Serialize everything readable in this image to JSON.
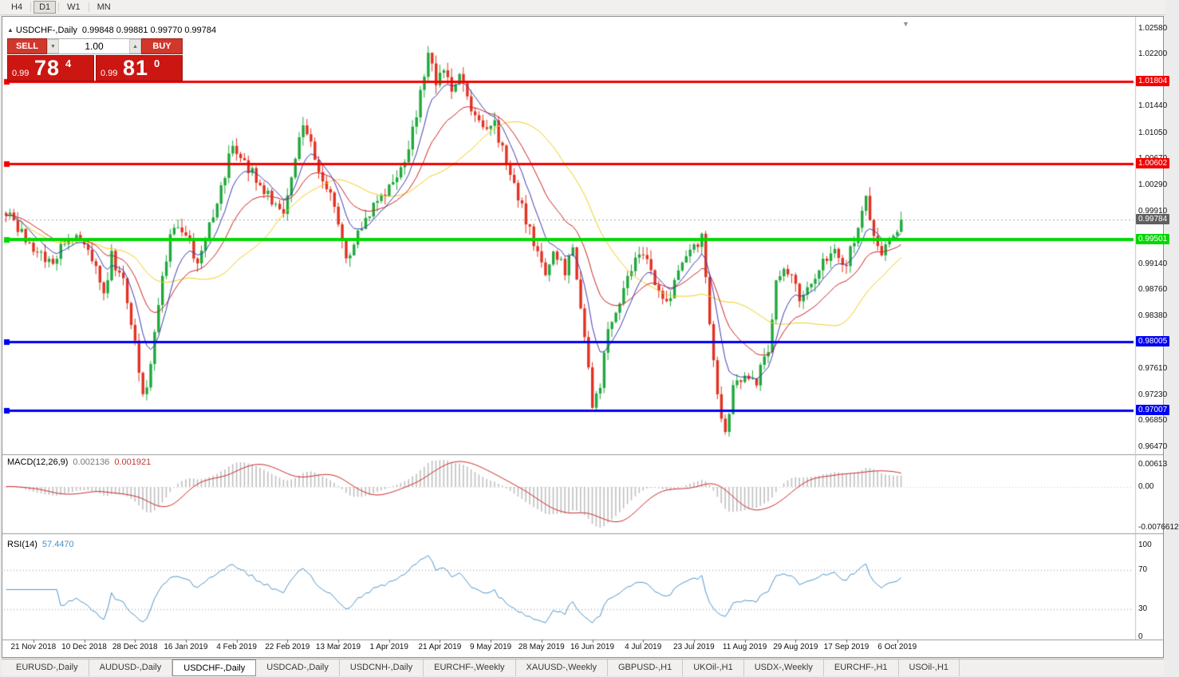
{
  "toolbar": {
    "timeframes": [
      {
        "label": "H4"
      },
      {
        "label": "D1"
      },
      {
        "label": "W1"
      },
      {
        "label": "MN"
      }
    ],
    "active_timeframe": "D1"
  },
  "icons": {
    "title_arrow": "▲",
    "shift_marker": "▼",
    "spinner_down": "▼",
    "spinner_up": "▲"
  },
  "chart_header": {
    "symbol": "USDCHF-,Daily",
    "ohlc_text": "0.99848 0.99881 0.99770 0.99784",
    "open": "0.99848",
    "high": "0.99881",
    "low": "0.99770",
    "close": "0.99784"
  },
  "trade_panel": {
    "sell_label": "SELL",
    "buy_label": "BUY",
    "volume": "1.00",
    "sell_price_prefix": "0.99",
    "sell_price_big": "78",
    "sell_price_sup": "4",
    "buy_price_prefix": "0.99",
    "buy_price_big": "81",
    "buy_price_sup": "0"
  },
  "indicators": {
    "macd": {
      "name": "MACD(12,26,9)",
      "main_value": "0.002136",
      "signal_value": "0.001921",
      "axis_top": "0.00613",
      "axis_zero": "0.00",
      "axis_bottom": "-0.0076612"
    },
    "rsi": {
      "name": "RSI(14)",
      "value": "57.4470",
      "axis_labels": [
        100,
        70,
        30,
        0
      ],
      "levels": [
        70,
        30
      ]
    }
  },
  "tabs": [
    {
      "label": "EURUSD-,Daily",
      "active": false
    },
    {
      "label": "AUDUSD-,Daily",
      "active": false
    },
    {
      "label": "USDCHF-,Daily",
      "active": true
    },
    {
      "label": "USDCAD-,Daily",
      "active": false
    },
    {
      "label": "USDCNH-,Daily",
      "active": false
    },
    {
      "label": "EURCHF-,Weekly",
      "active": false
    },
    {
      "label": "XAUUSD-,Weekly",
      "active": false
    },
    {
      "label": "GBPUSD-,H1",
      "active": false
    },
    {
      "label": "UKOil-,H1",
      "active": false
    },
    {
      "label": "USDX-,Weekly",
      "active": false
    },
    {
      "label": "EURCHF-,H1",
      "active": false
    },
    {
      "label": "USOil-,H1",
      "active": false
    }
  ],
  "chart_data": {
    "type": "candlestick",
    "symbol": "USDCHF-",
    "timeframe": "Daily",
    "title": "USDCHF-,Daily",
    "price_axis": {
      "min": 0.9641,
      "max": 1.0268,
      "labels": [
        "1.02580",
        "1.02200",
        "1.01440",
        "1.01050",
        "1.00670",
        "1.00290",
        "0.99910",
        "0.99140",
        "0.98760",
        "0.98380",
        "0.97610",
        "0.97230",
        "0.96850",
        "0.96470"
      ]
    },
    "hlines": [
      {
        "value": 1.01804,
        "label": "1.01804",
        "color": "#f40000",
        "width": 3
      },
      {
        "value": 1.00602,
        "label": "1.00602",
        "color": "#f40000",
        "width": 3
      },
      {
        "value": 0.99501,
        "label": "0.99501",
        "color": "#00d800",
        "width": 4
      },
      {
        "value": 0.98005,
        "label": "0.98005",
        "color": "#0000f0",
        "width": 3
      },
      {
        "value": 0.97007,
        "label": "0.97007",
        "color": "#0000f0",
        "width": 3
      }
    ],
    "current_price": {
      "value": 0.99784,
      "label": "0.99784",
      "badge_color": "#5f5f5f"
    },
    "num_candles": 230,
    "waypoints": [
      [
        0,
        0.9988
      ],
      [
        4,
        0.9962
      ],
      [
        8,
        0.9932
      ],
      [
        12,
        0.9912
      ],
      [
        15,
        0.9946
      ],
      [
        18,
        0.9958
      ],
      [
        21,
        0.994
      ],
      [
        25,
        0.987
      ],
      [
        27,
        0.9925
      ],
      [
        30,
        0.989
      ],
      [
        33,
        0.98
      ],
      [
        35,
        0.9718
      ],
      [
        37,
        0.976
      ],
      [
        40,
        0.99
      ],
      [
        43,
        0.9975
      ],
      [
        46,
        0.9955
      ],
      [
        49,
        0.9915
      ],
      [
        53,
        0.9985
      ],
      [
        58,
        1.0088
      ],
      [
        61,
        1.006
      ],
      [
        64,
        1.004
      ],
      [
        68,
        1.0005
      ],
      [
        71,
        0.9985
      ],
      [
        74,
        1.006
      ],
      [
        76,
        1.0125
      ],
      [
        78,
        1.0085
      ],
      [
        81,
        1.004
      ],
      [
        84,
        0.9995
      ],
      [
        87,
        0.9925
      ],
      [
        90,
        0.9955
      ],
      [
        93,
        0.999
      ],
      [
        97,
        1.0015
      ],
      [
        100,
        1.0048
      ],
      [
        103,
        1.008
      ],
      [
        106,
        1.016
      ],
      [
        108,
        1.0218
      ],
      [
        110,
        1.018
      ],
      [
        112,
        1.0195
      ],
      [
        114,
        1.017
      ],
      [
        116,
        1.0192
      ],
      [
        119,
        1.014
      ],
      [
        122,
        1.0105
      ],
      [
        125,
        1.012
      ],
      [
        128,
        1.006
      ],
      [
        131,
        1.0015
      ],
      [
        134,
        0.996
      ],
      [
        136,
        0.9925
      ],
      [
        138,
        0.99
      ],
      [
        140,
        0.9932
      ],
      [
        143,
        0.9905
      ],
      [
        145,
        0.993
      ],
      [
        147,
        0.985
      ],
      [
        149,
        0.977
      ],
      [
        150,
        0.9705
      ],
      [
        152,
        0.974
      ],
      [
        154,
        0.982
      ],
      [
        157,
        0.9855
      ],
      [
        160,
        0.9905
      ],
      [
        163,
        0.9935
      ],
      [
        166,
        0.988
      ],
      [
        169,
        0.9855
      ],
      [
        172,
        0.99
      ],
      [
        175,
        0.9928
      ],
      [
        178,
        0.995
      ],
      [
        180,
        0.983
      ],
      [
        182,
        0.972
      ],
      [
        184,
        0.9672
      ],
      [
        186,
        0.973
      ],
      [
        189,
        0.975
      ],
      [
        192,
        0.9745
      ],
      [
        195,
        0.979
      ],
      [
        197,
        0.989
      ],
      [
        200,
        0.9905
      ],
      [
        203,
        0.9862
      ],
      [
        206,
        0.9888
      ],
      [
        209,
        0.9918
      ],
      [
        212,
        0.994
      ],
      [
        214,
        0.9905
      ],
      [
        217,
        0.9945
      ],
      [
        220,
        1.0008
      ],
      [
        222,
        0.9952
      ],
      [
        224,
        0.9932
      ],
      [
        226,
        0.9945
      ],
      [
        229,
        0.99784
      ]
    ],
    "date_labels": [
      {
        "index": 7,
        "label": "21 Nov 2018"
      },
      {
        "index": 20,
        "label": "10 Dec 2018"
      },
      {
        "index": 33,
        "label": "28 Dec 2018"
      },
      {
        "index": 46,
        "label": "16 Jan 2019"
      },
      {
        "index": 59,
        "label": "4 Feb 2019"
      },
      {
        "index": 72,
        "label": "22 Feb 2019"
      },
      {
        "index": 85,
        "label": "13 Mar 2019"
      },
      {
        "index": 98,
        "label": "1 Apr 2019"
      },
      {
        "index": 111,
        "label": "21 Apr 2019"
      },
      {
        "index": 124,
        "label": "9 May 2019"
      },
      {
        "index": 137,
        "label": "28 May 2019"
      },
      {
        "index": 150,
        "label": "16 Jun 2019"
      },
      {
        "index": 163,
        "label": "4 Jul 2019"
      },
      {
        "index": 176,
        "label": "23 Jul 2019"
      },
      {
        "index": 189,
        "label": "11 Aug 2019"
      },
      {
        "index": 202,
        "label": "29 Aug 2019"
      },
      {
        "index": 215,
        "label": "17 Sep 2019"
      },
      {
        "index": 228,
        "label": "6 Oct 2019"
      }
    ],
    "colors": {
      "up": "#1fa83c",
      "down": "#e23122",
      "ma_fast": "#3c3cb4",
      "ma_mid": "#cc2222",
      "ma_slow": "#f2ce1b",
      "macd_hist": "#c0c0c0",
      "macd_signal": "#cc2b2b",
      "rsi": "#4f97cc",
      "current_line": "#a8a8a8"
    },
    "ma_periods": {
      "fast": 8,
      "mid": 20,
      "slow": 34
    }
  }
}
